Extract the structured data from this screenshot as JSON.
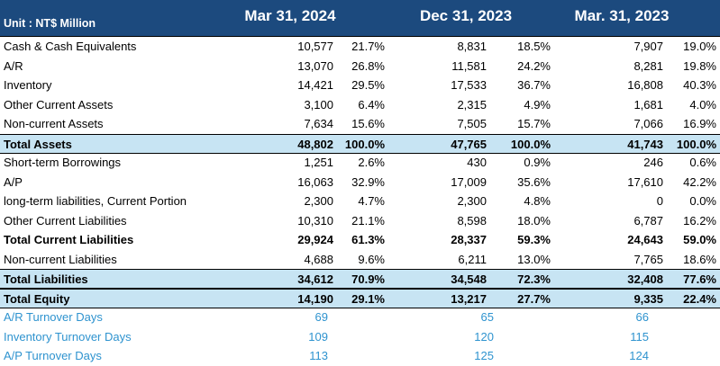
{
  "header": {
    "unit": "Unit : NT$ Million",
    "periods": [
      "Mar 31, 2024",
      "Dec 31, 2023",
      "Mar. 31, 2023"
    ]
  },
  "table": {
    "rows": [
      {
        "label": "Cash & Cash Equivalents",
        "cells": [
          "10,577",
          "21.7%",
          "8,831",
          "18.5%",
          "7,907",
          "19.0%"
        ]
      },
      {
        "label": "A/R",
        "cells": [
          "13,070",
          "26.8%",
          "11,581",
          "24.2%",
          "8,281",
          "19.8%"
        ]
      },
      {
        "label": "Inventory",
        "cells": [
          "14,421",
          "29.5%",
          "17,533",
          "36.7%",
          "16,808",
          "40.3%"
        ]
      },
      {
        "label": "Other Current Assets",
        "cells": [
          "3,100",
          "6.4%",
          "2,315",
          "4.9%",
          "1,681",
          "4.0%"
        ]
      },
      {
        "label": "Non-current Assets",
        "cells": [
          "7,634",
          "15.6%",
          "7,505",
          "15.7%",
          "7,066",
          "16.9%"
        ]
      },
      {
        "label": "Total Assets",
        "style": "highlight",
        "cells": [
          "48,802",
          "100.0%",
          "47,765",
          "100.0%",
          "41,743",
          "100.0%"
        ]
      },
      {
        "label": "Short-term Borrowings",
        "cells": [
          "1,251",
          "2.6%",
          "430",
          "0.9%",
          "246",
          "0.6%"
        ]
      },
      {
        "label": "A/P",
        "cells": [
          "16,063",
          "32.9%",
          "17,009",
          "35.6%",
          "17,610",
          "42.2%"
        ]
      },
      {
        "label": "long-term liabilities, Current Portion",
        "cells": [
          "2,300",
          "4.7%",
          "2,300",
          "4.8%",
          "0",
          "0.0%"
        ]
      },
      {
        "label": "Other Current Liabilities",
        "cells": [
          "10,310",
          "21.1%",
          "8,598",
          "18.0%",
          "6,787",
          "16.2%"
        ]
      },
      {
        "label": "Total Current Liabilities",
        "style": "bold",
        "cells": [
          "29,924",
          "61.3%",
          "28,337",
          "59.3%",
          "24,643",
          "59.0%"
        ]
      },
      {
        "label": "Non-current Liabilities",
        "cells": [
          "4,688",
          "9.6%",
          "6,211",
          "13.0%",
          "7,765",
          "18.6%"
        ]
      },
      {
        "label": "Total Liabilities",
        "style": "highlight",
        "cells": [
          "34,612",
          "70.9%",
          "34,548",
          "72.3%",
          "32,408",
          "77.6%"
        ]
      },
      {
        "label": "Total Equity",
        "style": "highlight",
        "cells": [
          "14,190",
          "29.1%",
          "13,217",
          "27.7%",
          "9,335",
          "22.4%"
        ]
      },
      {
        "label": "A/R Turnover Days",
        "style": "blue",
        "cells": [
          "69",
          "65",
          "66"
        ]
      },
      {
        "label": "Inventory Turnover Days",
        "style": "blue",
        "cells": [
          "109",
          "120",
          "115"
        ]
      },
      {
        "label": "A/P Turnover Days",
        "style": "blue",
        "cells": [
          "113",
          "125",
          "124"
        ]
      }
    ]
  }
}
